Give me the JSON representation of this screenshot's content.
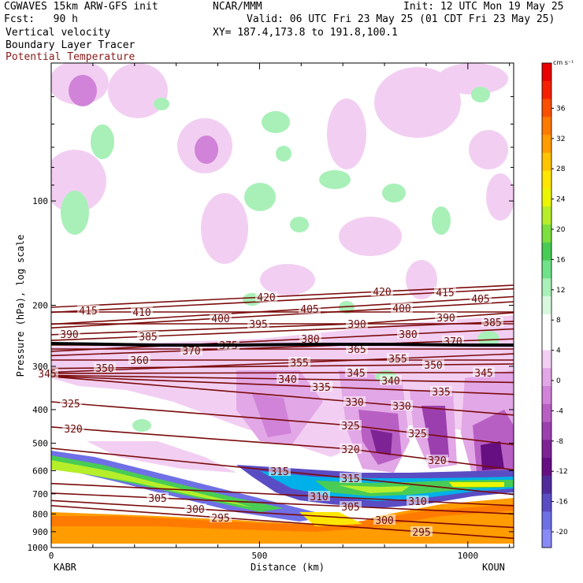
{
  "header": {
    "line1_left": "CGWAVES 15km ARW-GFS init",
    "line1_center": "NCAR/MMM",
    "line1_right": "Init: 12 UTC Mon 19 May 25",
    "line2_left": "Fcst:   90 h",
    "line2_right": "Valid: 06 UTC Fri 23 May 25 (01 CDT Fri 23 May 25)",
    "line3_left": "Vertical velocity",
    "line3_center": "XY= 187.4,173.8 to 191.8,100.1",
    "line4_left": "Boundary Layer Tracer",
    "line5_left": "Potential Temperature"
  },
  "colors": {
    "theta_contour": "#7a0a0a",
    "potential_temperature_label": "#8b1a1a",
    "tropopause": "#000000"
  },
  "chart_data": {
    "type": "cross-section",
    "ylabel": "Pressure (hPa), log scale",
    "xlabel": "Distance (km)",
    "x_endpoints": [
      "KABR",
      "KOUN"
    ],
    "xlim": [
      0,
      1110
    ],
    "ylim": [
      1000,
      40
    ],
    "y_scale": "log",
    "x_ticks": [
      0,
      500,
      1000
    ],
    "y_ticks": [
      100,
      200,
      300,
      400,
      500,
      600,
      700,
      800,
      900,
      1000
    ],
    "colorbar": {
      "units": "cm s⁻¹",
      "labels": [
        "36",
        "32",
        "28",
        "24",
        "20",
        "16",
        "12",
        "8",
        "4",
        "0",
        "-4",
        "-8",
        "-12",
        "-16",
        "-20"
      ],
      "colors": [
        "#e80000",
        "#f42000",
        "#fa5000",
        "#ff7a00",
        "#ff9c00",
        "#ffc300",
        "#ffe600",
        "#ecf500",
        "#b6ee2a",
        "#7cdf3d",
        "#49cc55",
        "#6fe28a",
        "#a8f0b8",
        "#d8f8de",
        "#ffffff",
        "#ffffff",
        "#f2cff2",
        "#e2a7e6",
        "#d083d8",
        "#b85fc4",
        "#9c3fae",
        "#7d2396",
        "#660f82",
        "#4f2b9b",
        "#5a4dc4",
        "#6f6fe6",
        "#8a8af7"
      ]
    },
    "theta_contour_labels": [
      {
        "value": 295,
        "pos": [
          [
            280,
            657
          ],
          [
            535,
            675
          ]
        ]
      },
      {
        "value": 300,
        "pos": [
          [
            248,
            646
          ],
          [
            488,
            660
          ]
        ]
      },
      {
        "value": 305,
        "pos": [
          [
            200,
            632
          ],
          [
            445,
            643
          ]
        ]
      },
      {
        "value": 310,
        "pos": [
          [
            405,
            630
          ],
          [
            530,
            636
          ]
        ]
      },
      {
        "value": 315,
        "pos": [
          [
            355,
            598
          ],
          [
            445,
            607
          ]
        ]
      },
      {
        "value": 320,
        "pos": [
          [
            93,
            544
          ],
          [
            445,
            570
          ],
          [
            555,
            584
          ]
        ]
      },
      {
        "value": 325,
        "pos": [
          [
            90,
            512
          ],
          [
            445,
            540
          ],
          [
            530,
            550
          ]
        ]
      },
      {
        "value": 330,
        "pos": [
          [
            450,
            510
          ],
          [
            510,
            515
          ]
        ]
      },
      {
        "value": 335,
        "pos": [
          [
            408,
            491
          ],
          [
            560,
            497
          ]
        ]
      },
      {
        "value": 340,
        "pos": [
          [
            365,
            481
          ],
          [
            496,
            483
          ]
        ]
      },
      {
        "value": 345,
        "pos": [
          [
            60,
            474
          ],
          [
            452,
            473
          ],
          [
            614,
            473
          ]
        ]
      },
      {
        "value": 350,
        "pos": [
          [
            133,
            467
          ],
          [
            550,
            463
          ]
        ]
      },
      {
        "value": 355,
        "pos": [
          [
            380,
            460
          ],
          [
            505,
            455
          ]
        ]
      },
      {
        "value": 360,
        "pos": [
          [
            177,
            457
          ]
        ]
      },
      {
        "value": 365,
        "pos": [
          [
            453,
            443
          ]
        ]
      },
      {
        "value": 370,
        "pos": [
          [
            243,
            445
          ],
          [
            575,
            433
          ]
        ]
      },
      {
        "value": 375,
        "pos": [
          [
            290,
            438
          ]
        ]
      },
      {
        "value": 380,
        "pos": [
          [
            394,
            430
          ],
          [
            518,
            424
          ]
        ]
      },
      {
        "value": 385,
        "pos": [
          [
            188,
            427
          ],
          [
            625,
            409
          ]
        ]
      },
      {
        "value": 390,
        "pos": [
          [
            88,
            424
          ],
          [
            453,
            411
          ],
          [
            566,
            403
          ]
        ]
      },
      {
        "value": 395,
        "pos": [
          [
            328,
            411
          ]
        ]
      },
      {
        "value": 400,
        "pos": [
          [
            280,
            404
          ],
          [
            510,
            391
          ]
        ]
      },
      {
        "value": 405,
        "pos": [
          [
            393,
            392
          ],
          [
            610,
            379
          ]
        ]
      },
      {
        "value": 410,
        "pos": [
          [
            180,
            396
          ]
        ]
      },
      {
        "value": 415,
        "pos": [
          [
            112,
            394
          ],
          [
            565,
            371
          ]
        ]
      },
      {
        "value": 420,
        "pos": [
          [
            338,
            377
          ],
          [
            485,
            370
          ]
        ]
      }
    ]
  }
}
